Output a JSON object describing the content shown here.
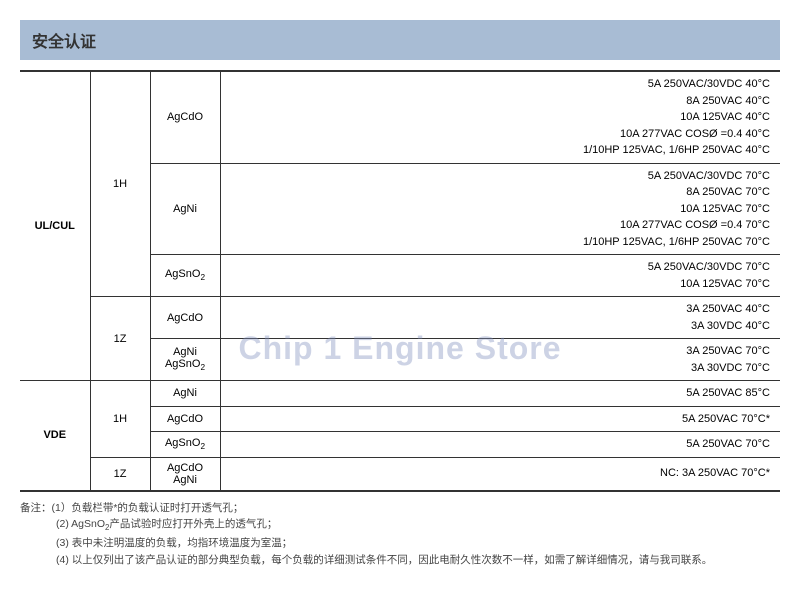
{
  "header": {
    "title": "安全认证"
  },
  "watermark": "Chip 1 Engine Store",
  "table": {
    "ulcul": {
      "label": "UL/CUL",
      "groups": [
        {
          "type": "1H",
          "rows": [
            {
              "material": "AgCdO",
              "ratings": [
                "5A 250VAC/30VDC 40°C",
                "8A 250VAC 40°C",
                "10A 125VAC 40°C",
                "10A  277VAC  COSØ =0.4 40°C",
                "1/10HP 125VAC,  1/6HP 250VAC 40°C"
              ]
            },
            {
              "material": "AgNi",
              "ratings": [
                "5A 250VAC/30VDC 70°C",
                "8A 250VAC 70°C",
                "10A 125VAC 70°C",
                "10A  277VAC  COSØ =0.4 70°C",
                "1/10HP 125VAC,  1/6HP 250VAC 70°C"
              ]
            },
            {
              "material": "AgSnO2",
              "ratings": [
                "5A 250VAC/30VDC 70°C",
                "10A 125VAC 70°C"
              ]
            }
          ]
        },
        {
          "type": "1Z",
          "rows": [
            {
              "material": "AgCdO",
              "ratings": [
                "3A 250VAC 40°C",
                "3A 30VDC 40°C"
              ]
            },
            {
              "material": "AgNi\nAgSnO2",
              "ratings": [
                "3A 250VAC 70°C",
                "3A 30VDC 70°C"
              ]
            }
          ]
        }
      ]
    },
    "vde": {
      "label": "VDE",
      "groups": [
        {
          "type": "1H",
          "rows": [
            {
              "material": "AgNi",
              "ratings": [
                "5A 250VAC 85°C"
              ]
            },
            {
              "material": "AgCdO",
              "ratings": [
                "5A 250VAC 70°C*"
              ]
            },
            {
              "material": "AgSnO2",
              "ratings": [
                "5A 250VAC 70°C"
              ]
            }
          ]
        },
        {
          "type": "1Z",
          "rows": [
            {
              "material": "AgCdO\nAgNi",
              "ratings": [
                "NC: 3A 250VAC 70°C*"
              ]
            }
          ]
        }
      ]
    }
  },
  "notes": {
    "label": "备注：",
    "items": [
      "(1）负载栏带*的负载认证时打开透气孔；",
      "(2) AgSnO2产品试验时应打开外壳上的透气孔；",
      "(3) 表中未注明温度的负载，均指环境温度为室温；",
      "(4) 以上仅列出了该产品认证的部分典型负载，每个负载的详细测试条件不同，因此电耐久性次数不一样，如需了解详细情况，请与我司联系。"
    ]
  },
  "colors": {
    "header_bg": "#a8bcd4",
    "border": "#333",
    "watermark": "rgba(130,145,190,0.4)"
  }
}
